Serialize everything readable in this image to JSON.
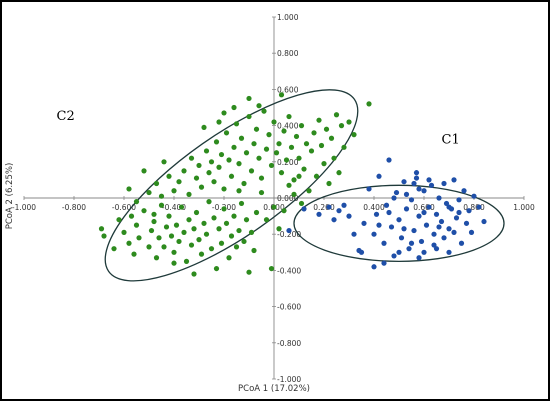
{
  "chart_data": {
    "type": "scatter",
    "xlabel": "PCoA 1 (17.02%)",
    "ylabel": "PCoA 2 (6.25%)",
    "xlim": [
      -1.0,
      1.0
    ],
    "ylim": [
      -1.0,
      1.0
    ],
    "x_ticks": [
      "-1.000",
      "-0.800",
      "-0.600",
      "-0.400",
      "-0.200",
      "0.000",
      "0.200",
      "0.400",
      "0.600",
      "0.800",
      "1.000"
    ],
    "y_ticks": [
      "1.000",
      "0.800",
      "0.600",
      "0.400",
      "0.200",
      "0.000",
      "-0.200",
      "-0.400",
      "-0.600",
      "-0.800",
      "-1.000"
    ],
    "grid": false,
    "series": [
      {
        "name": "C2",
        "color": "#2e8b1e",
        "points": [
          [
            -0.69,
            -0.17
          ],
          [
            -0.68,
            -0.21
          ],
          [
            -0.64,
            -0.28
          ],
          [
            -0.62,
            -0.12
          ],
          [
            -0.6,
            -0.19
          ],
          [
            -0.58,
            -0.25
          ],
          [
            -0.57,
            -0.1
          ],
          [
            -0.56,
            -0.31
          ],
          [
            -0.55,
            -0.15
          ],
          [
            -0.54,
            -0.22
          ],
          [
            -0.52,
            -0.07
          ],
          [
            -0.5,
            -0.27
          ],
          [
            -0.49,
            -0.18
          ],
          [
            -0.48,
            -0.13
          ],
          [
            -0.47,
            -0.33
          ],
          [
            -0.46,
            -0.22
          ],
          [
            -0.45,
            -0.04
          ],
          [
            -0.44,
            -0.27
          ],
          [
            -0.43,
            -0.16
          ],
          [
            -0.42,
            -0.1
          ],
          [
            -0.41,
            -0.21
          ],
          [
            -0.4,
            -0.3
          ],
          [
            -0.39,
            -0.15
          ],
          [
            -0.38,
            -0.24
          ],
          [
            -0.37,
            -0.05
          ],
          [
            -0.36,
            -0.19
          ],
          [
            -0.35,
            -0.35
          ],
          [
            -0.34,
            -0.12
          ],
          [
            -0.33,
            -0.26
          ],
          [
            -0.32,
            -0.17
          ],
          [
            -0.31,
            -0.08
          ],
          [
            -0.3,
            -0.23
          ],
          [
            -0.29,
            -0.31
          ],
          [
            -0.28,
            -0.14
          ],
          [
            -0.27,
            -0.2
          ],
          [
            -0.26,
            -0.02
          ],
          [
            -0.25,
            -0.28
          ],
          [
            -0.24,
            -0.11
          ],
          [
            -0.23,
            -0.39
          ],
          [
            -0.22,
            -0.17
          ],
          [
            -0.21,
            -0.25
          ],
          [
            -0.2,
            -0.06
          ],
          [
            -0.19,
            -0.14
          ],
          [
            -0.18,
            -0.33
          ],
          [
            -0.17,
            -0.21
          ],
          [
            -0.16,
            -0.1
          ],
          [
            -0.15,
            -0.27
          ],
          [
            -0.14,
            -0.18
          ],
          [
            -0.13,
            -0.03
          ],
          [
            -0.12,
            -0.24
          ],
          [
            -0.11,
            -0.12
          ],
          [
            -0.1,
            -0.41
          ],
          [
            -0.09,
            -0.19
          ],
          [
            -0.08,
            -0.29
          ],
          [
            -0.07,
            -0.08
          ],
          [
            -0.58,
            0.05
          ],
          [
            -0.55,
            -0.02
          ],
          [
            -0.5,
            0.03
          ],
          [
            -0.47,
            0.08
          ],
          [
            -0.45,
            0.01
          ],
          [
            -0.42,
            0.12
          ],
          [
            -0.4,
            0.04
          ],
          [
            -0.38,
            0.09
          ],
          [
            -0.36,
            0.15
          ],
          [
            -0.34,
            0.02
          ],
          [
            -0.33,
            0.22
          ],
          [
            -0.31,
            0.11
          ],
          [
            -0.3,
            0.18
          ],
          [
            -0.29,
            0.06
          ],
          [
            -0.27,
            0.26
          ],
          [
            -0.26,
            0.14
          ],
          [
            -0.25,
            0.2
          ],
          [
            -0.24,
            0.09
          ],
          [
            -0.23,
            0.31
          ],
          [
            -0.22,
            0.17
          ],
          [
            -0.21,
            0.24
          ],
          [
            -0.2,
            0.05
          ],
          [
            -0.19,
            0.36
          ],
          [
            -0.18,
            0.21
          ],
          [
            -0.17,
            0.12
          ],
          [
            -0.16,
            0.28
          ],
          [
            -0.15,
            0.41
          ],
          [
            -0.14,
            0.19
          ],
          [
            -0.13,
            0.33
          ],
          [
            -0.12,
            0.08
          ],
          [
            -0.11,
            0.25
          ],
          [
            -0.1,
            0.45
          ],
          [
            -0.09,
            0.15
          ],
          [
            -0.08,
            0.3
          ],
          [
            -0.07,
            0.38
          ],
          [
            -0.06,
            0.22
          ],
          [
            -0.05,
            0.11
          ],
          [
            -0.04,
            0.48
          ],
          [
            -0.03,
            0.27
          ],
          [
            -0.02,
            0.35
          ],
          [
            -0.01,
            0.18
          ],
          [
            0.0,
            0.42
          ],
          [
            0.01,
            0.25
          ],
          [
            0.02,
            0.3
          ],
          [
            0.03,
            0.14
          ],
          [
            0.04,
            0.37
          ],
          [
            0.05,
            0.21
          ],
          [
            0.06,
            0.45
          ],
          [
            0.07,
            0.28
          ],
          [
            0.08,
            0.1
          ],
          [
            0.09,
            0.34
          ],
          [
            0.1,
            0.22
          ],
          [
            0.11,
            0.4
          ],
          [
            0.12,
            0.16
          ],
          [
            0.13,
            0.3
          ],
          [
            0.14,
            0.04
          ],
          [
            0.15,
            0.26
          ],
          [
            0.16,
            0.36
          ],
          [
            0.17,
            0.12
          ],
          [
            0.18,
            0.43
          ],
          [
            0.19,
            0.29
          ],
          [
            0.2,
            0.19
          ],
          [
            0.21,
            0.38
          ],
          [
            0.22,
            0.08
          ],
          [
            0.23,
            0.33
          ],
          [
            0.24,
            0.22
          ],
          [
            0.25,
            0.46
          ],
          [
            0.26,
            0.14
          ],
          [
            0.27,
            0.4
          ],
          [
            0.28,
            0.28
          ],
          [
            0.3,
            0.42
          ],
          [
            0.32,
            0.35
          ],
          [
            0.38,
            0.52
          ],
          [
            -0.28,
            0.39
          ],
          [
            -0.22,
            0.42
          ],
          [
            -0.16,
            0.5
          ],
          [
            -0.1,
            0.55
          ],
          [
            -0.06,
            0.51
          ],
          [
            -0.2,
            0.47
          ],
          [
            0.03,
            0.57
          ],
          [
            0.06,
            0.07
          ],
          [
            0.11,
            -0.03
          ],
          [
            0.0,
            -0.05
          ],
          [
            0.02,
            -0.17
          ],
          [
            0.08,
            0.02
          ],
          [
            -0.03,
            -0.12
          ],
          [
            0.1,
            0.12
          ],
          [
            -0.01,
            -0.39
          ],
          [
            0.04,
            -0.07
          ],
          [
            -0.52,
            0.15
          ],
          [
            -0.48,
            -0.09
          ],
          [
            -0.4,
            -0.36
          ],
          [
            -0.32,
            -0.42
          ],
          [
            -0.05,
            0.03
          ],
          [
            -0.44,
            0.2
          ],
          [
            -0.14,
            0.04
          ]
        ]
      },
      {
        "name": "C1",
        "color": "#1f4fa8",
        "points": [
          [
            0.06,
            -0.18
          ],
          [
            0.12,
            -0.06
          ],
          [
            0.18,
            -0.09
          ],
          [
            0.22,
            -0.05
          ],
          [
            0.26,
            -0.07
          ],
          [
            0.3,
            -0.1
          ],
          [
            0.32,
            -0.2
          ],
          [
            0.34,
            -0.29
          ],
          [
            0.36,
            -0.14
          ],
          [
            0.38,
            0.05
          ],
          [
            0.4,
            -0.2
          ],
          [
            0.41,
            -0.09
          ],
          [
            0.42,
            0.12
          ],
          [
            0.44,
            -0.25
          ],
          [
            0.45,
            -0.04
          ],
          [
            0.46,
            0.21
          ],
          [
            0.47,
            -0.16
          ],
          [
            0.48,
            -0.32
          ],
          [
            0.49,
            0.03
          ],
          [
            0.5,
            -0.12
          ],
          [
            0.51,
            -0.22
          ],
          [
            0.52,
            0.09
          ],
          [
            0.53,
            -0.06
          ],
          [
            0.54,
            -0.28
          ],
          [
            0.55,
            -0.01
          ],
          [
            0.56,
            -0.18
          ],
          [
            0.57,
            0.14
          ],
          [
            0.58,
            -0.1
          ],
          [
            0.59,
            -0.24
          ],
          [
            0.6,
            0.04
          ],
          [
            0.61,
            -0.15
          ],
          [
            0.62,
            -0.05
          ],
          [
            0.63,
            0.07
          ],
          [
            0.64,
            -0.2
          ],
          [
            0.65,
            -0.09
          ],
          [
            0.66,
            0.0
          ],
          [
            0.67,
            -0.13
          ],
          [
            0.68,
            0.08
          ],
          [
            0.69,
            -0.03
          ],
          [
            0.7,
            -0.17
          ],
          [
            0.71,
            -0.06
          ],
          [
            0.72,
            0.1
          ],
          [
            0.73,
            -0.11
          ],
          [
            0.74,
            -0.01
          ],
          [
            0.75,
            -0.25
          ],
          [
            0.76,
            0.04
          ],
          [
            0.77,
            -0.14
          ],
          [
            0.78,
            -0.07
          ],
          [
            0.79,
            -0.19
          ],
          [
            0.8,
            0.01
          ],
          [
            0.82,
            -0.05
          ],
          [
            0.84,
            -0.13
          ],
          [
            0.6,
            -0.3
          ],
          [
            0.65,
            -0.28
          ],
          [
            0.7,
            -0.3
          ],
          [
            0.56,
            0.08
          ],
          [
            0.62,
            0.1
          ],
          [
            0.55,
            -0.25
          ],
          [
            0.66,
            -0.16
          ],
          [
            0.72,
            -0.19
          ],
          [
            0.53,
            0.02
          ],
          [
            0.58,
            0.05
          ],
          [
            0.68,
            -0.22
          ],
          [
            0.74,
            -0.08
          ],
          [
            0.35,
            -0.3
          ],
          [
            0.4,
            -0.38
          ],
          [
            0.44,
            -0.36
          ],
          [
            0.5,
            -0.3
          ],
          [
            0.28,
            -0.04
          ],
          [
            0.24,
            -0.12
          ],
          [
            0.64,
            -0.26
          ],
          [
            0.7,
            -0.05
          ],
          [
            0.6,
            -0.08
          ],
          [
            0.57,
            0.11
          ],
          [
            0.52,
            -0.17
          ],
          [
            0.46,
            -0.08
          ],
          [
            0.42,
            -0.15
          ],
          [
            0.48,
            0.0
          ],
          [
            0.58,
            -0.33
          ]
        ]
      }
    ],
    "ellipses": [
      {
        "label": "C2",
        "center": [
          -0.17,
          0.07
        ],
        "rx": 0.6,
        "ry": 0.28,
        "angle_deg": 35
      },
      {
        "label": "C1",
        "center": [
          0.5,
          -0.14
        ],
        "rx": 0.42,
        "ry": 0.21,
        "angle_deg": 0
      }
    ],
    "annotations": [
      {
        "text": "C2",
        "x": -0.87,
        "y": 0.43
      },
      {
        "text": "C1",
        "x": 0.67,
        "y": 0.3
      }
    ]
  }
}
